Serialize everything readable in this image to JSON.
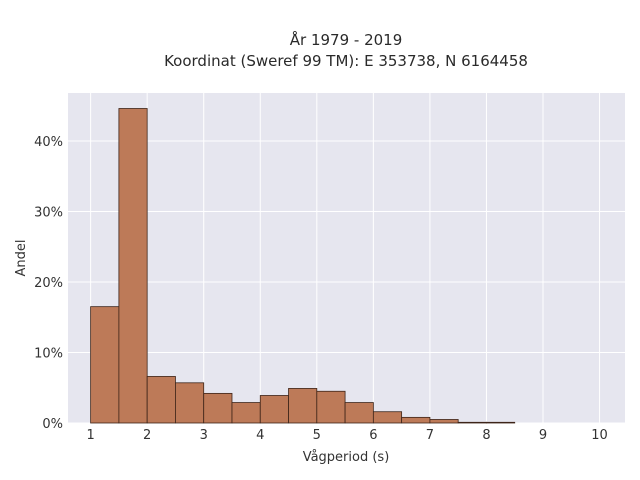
{
  "chart_data": {
    "type": "bar",
    "title": [
      "År 1979 - 2019",
      "Koordinat (Sweref 99 TM): E 353738, N 6164458"
    ],
    "xlabel": "Vågperiod (s)",
    "ylabel": "Andel",
    "xlim": [
      0.6,
      10.45
    ],
    "ylim": [
      0,
      0.468
    ],
    "x_ticks": [
      1,
      2,
      3,
      4,
      5,
      6,
      7,
      8,
      9,
      10
    ],
    "x_tick_labels": [
      "1",
      "2",
      "3",
      "4",
      "5",
      "6",
      "7",
      "8",
      "9",
      "10"
    ],
    "y_ticks": [
      0,
      0.1,
      0.2,
      0.3,
      0.4
    ],
    "y_tick_labels": [
      "0%",
      "10%",
      "20%",
      "30%",
      "40%"
    ],
    "grid": true,
    "bin_width": 0.5,
    "bins": [
      {
        "start": 1.0,
        "value": 0.165
      },
      {
        "start": 1.5,
        "value": 0.446
      },
      {
        "start": 2.0,
        "value": 0.066
      },
      {
        "start": 2.5,
        "value": 0.057
      },
      {
        "start": 3.0,
        "value": 0.042
      },
      {
        "start": 3.5,
        "value": 0.029
      },
      {
        "start": 4.0,
        "value": 0.039
      },
      {
        "start": 4.5,
        "value": 0.049
      },
      {
        "start": 5.0,
        "value": 0.045
      },
      {
        "start": 5.5,
        "value": 0.029
      },
      {
        "start": 6.0,
        "value": 0.016
      },
      {
        "start": 6.5,
        "value": 0.008
      },
      {
        "start": 7.0,
        "value": 0.005
      },
      {
        "start": 7.5,
        "value": 0.001
      },
      {
        "start": 8.0,
        "value": 0.001
      }
    ],
    "colors": {
      "bar_fill": "#bd7a58",
      "bar_stroke": "#3d2418",
      "plot_background": "#e6e6ef",
      "grid": "#ffffff"
    }
  }
}
